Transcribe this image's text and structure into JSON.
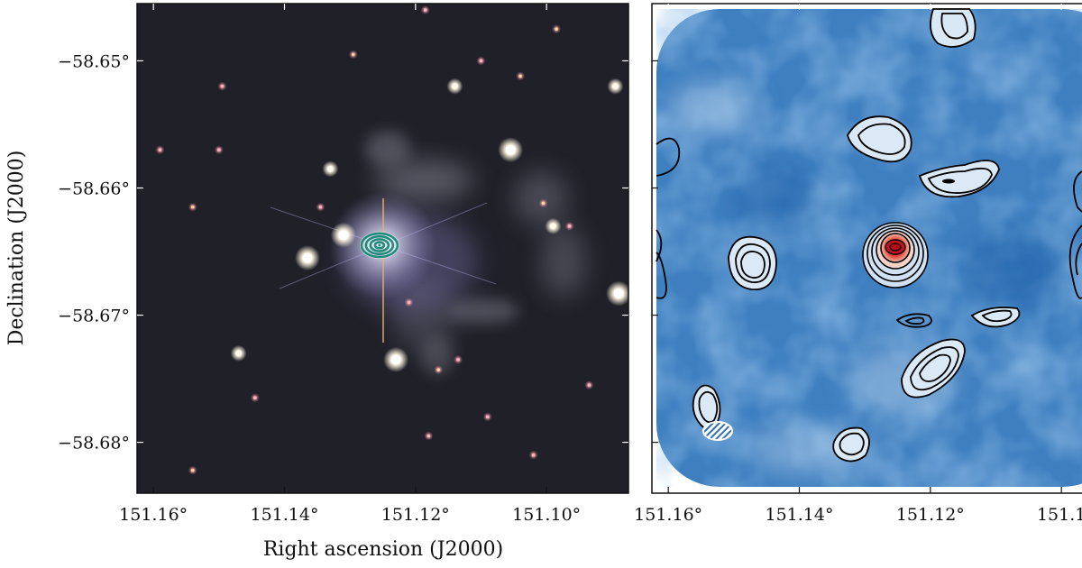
{
  "chart_data": [
    {
      "type": "scatter",
      "description_kind": "optical image with radio contour overlay",
      "xlabel": "Right ascension (J2000)",
      "ylabel": "Declination (J2000)",
      "x_reversed": true,
      "xlim": [
        151.1625,
        151.0875
      ],
      "ylim": [
        -58.684,
        -58.6455
      ],
      "x_ticks": [
        151.16,
        151.14,
        151.12,
        151.1
      ],
      "x_tick_labels": [
        "151.16°",
        "151.14°",
        "151.12°",
        "151.10°"
      ],
      "y_ticks": [
        -58.65,
        -58.66,
        -58.67,
        -58.68
      ],
      "y_tick_labels": [
        "−58.65°",
        "−58.66°",
        "−58.67°",
        "−58.68°"
      ],
      "background_color": "#1a1f22",
      "contour_color": "#1f8a7d",
      "central_source": {
        "ra": 151.1255,
        "dec": -58.6645,
        "n_contours": 4
      },
      "stars": [
        {
          "ra": 151.1055,
          "dec": -58.657,
          "mag": 3
        },
        {
          "ra": 151.131,
          "dec": -58.6637,
          "mag": 3
        },
        {
          "ra": 151.1365,
          "dec": -58.6655,
          "mag": 3
        },
        {
          "ra": 151.123,
          "dec": -58.6735,
          "mag": 3
        },
        {
          "ra": 151.089,
          "dec": -58.6683,
          "mag": 3
        },
        {
          "ra": 151.0895,
          "dec": -58.652,
          "mag": 2
        },
        {
          "ra": 151.114,
          "dec": -58.652,
          "mag": 2
        },
        {
          "ra": 151.147,
          "dec": -58.673,
          "mag": 2
        },
        {
          "ra": 151.099,
          "dec": -58.663,
          "mag": 2
        },
        {
          "ra": 151.133,
          "dec": -58.6585,
          "mag": 2
        },
        {
          "ra": 151.15,
          "dec": -58.657,
          "mag": 1
        },
        {
          "ra": 151.118,
          "dec": -58.6795,
          "mag": 1
        },
        {
          "ra": 151.1005,
          "dec": -58.6612,
          "mag": 1
        },
        {
          "ra": 151.0965,
          "dec": -58.663,
          "mag": 1
        },
        {
          "ra": 151.159,
          "dec": -58.657,
          "mag": 1
        },
        {
          "ra": 151.154,
          "dec": -58.6822,
          "mag": 1
        },
        {
          "ra": 151.109,
          "dec": -58.678,
          "mag": 1
        },
        {
          "ra": 151.102,
          "dec": -58.681,
          "mag": 1
        },
        {
          "ra": 151.1165,
          "dec": -58.6743,
          "mag": 1
        },
        {
          "ra": 151.1445,
          "dec": -58.6765,
          "mag": 1
        },
        {
          "ra": 151.1345,
          "dec": -58.6615,
          "mag": 1
        },
        {
          "ra": 151.104,
          "dec": -58.6512,
          "mag": 1
        },
        {
          "ra": 151.1135,
          "dec": -58.6735,
          "mag": 1
        },
        {
          "ra": 151.121,
          "dec": -58.669,
          "mag": 1
        },
        {
          "ra": 151.154,
          "dec": -58.6615,
          "mag": 1
        },
        {
          "ra": 151.0935,
          "dec": -58.6755,
          "mag": 1
        },
        {
          "ra": 151.11,
          "dec": -58.65,
          "mag": 1
        },
        {
          "ra": 151.1295,
          "dec": -58.6495,
          "mag": 1
        },
        {
          "ra": 151.1495,
          "dec": -58.652,
          "mag": 1
        },
        {
          "ra": 151.1185,
          "dec": -58.646,
          "mag": 1
        },
        {
          "ra": 151.0985,
          "dec": -58.6475,
          "mag": 1
        }
      ]
    },
    {
      "type": "heatmap",
      "description_kind": "radio continuum map with black contours",
      "x_reversed": true,
      "xlim": [
        151.1625,
        151.0875
      ],
      "ylim": [
        -58.684,
        -58.6455
      ],
      "x_ticks": [
        151.16,
        151.14,
        151.12,
        151.1
      ],
      "x_tick_labels": [
        "151.16°",
        "151.14°",
        "151.12°",
        "151.1"
      ],
      "colormap": [
        "#1e5fa8",
        "#3f7fc0",
        "#6fa1d2",
        "#a9c8e6",
        "#ffffff",
        "#e05a3a",
        "#b30d18"
      ],
      "peak": {
        "ra": 151.1255,
        "dec": -58.6645
      },
      "contour_color": "#000000",
      "beam": {
        "ra": 151.1535,
        "dec": -58.6815
      }
    }
  ]
}
